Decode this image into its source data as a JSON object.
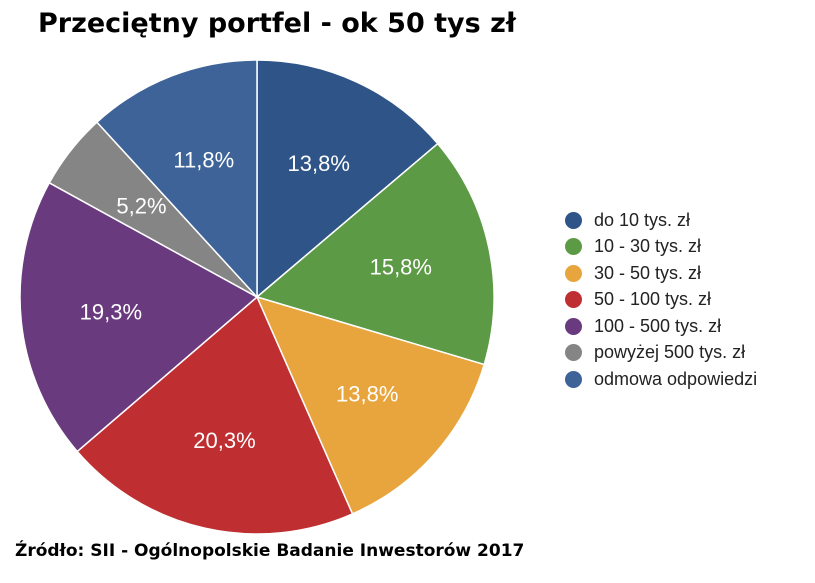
{
  "title": "Przeciętny portfel - ok 50 tys zł",
  "source": "Źródło: SII - Ogólnopolskie Badanie Inwestorów 2017",
  "chart_data": {
    "type": "pie",
    "start_angle_deg": 0,
    "direction": "clockwise",
    "legend_position": "right",
    "slices": [
      {
        "label": "do 10 tys. zł",
        "value": 13.8,
        "display": "13,8%",
        "color": "#2f5487"
      },
      {
        "label": "10 - 30 tys. zł",
        "value": 15.8,
        "display": "15,8%",
        "color": "#5c9a45"
      },
      {
        "label": "30 - 50 tys. zł",
        "value": 13.8,
        "display": "13,8%",
        "color": "#e8a43d"
      },
      {
        "label": "50 - 100 tys. zł",
        "value": 20.3,
        "display": "20,3%",
        "color": "#bf2f31"
      },
      {
        "label": "100 - 500 tys. zł",
        "value": 19.3,
        "display": "19,3%",
        "color": "#6a3a7f"
      },
      {
        "label": "powyżej 500 tys. zł",
        "value": 5.2,
        "display": "5,2%",
        "color": "#858585"
      },
      {
        "label": "odmowa odpowiedzi",
        "value": 11.8,
        "display": "11,8%",
        "color": "#3d6398"
      }
    ]
  }
}
